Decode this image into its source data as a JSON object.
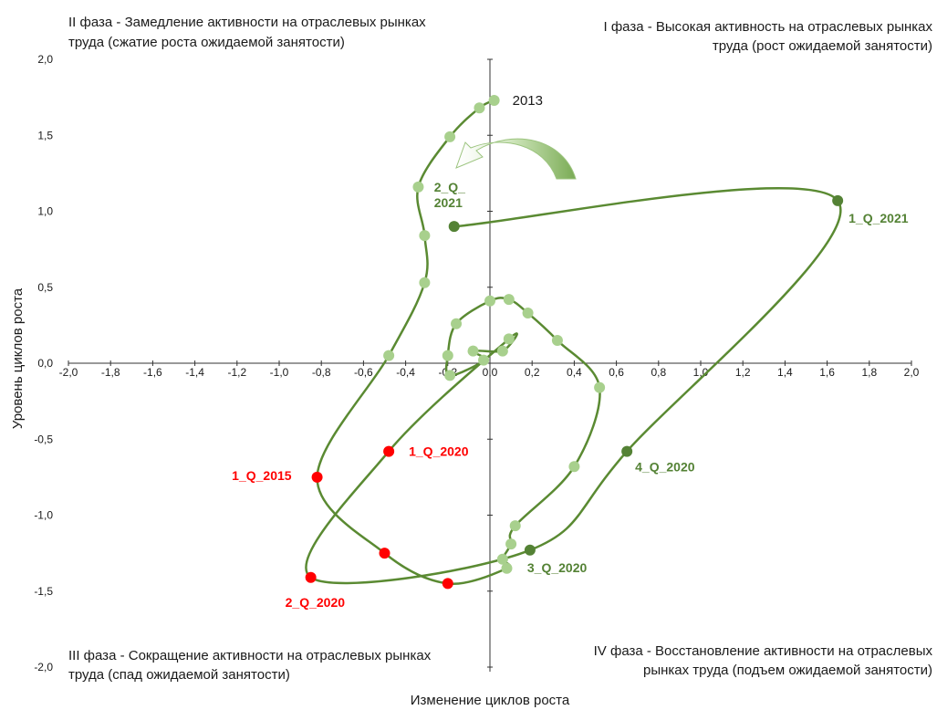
{
  "phases": {
    "q2_line1": "II  фаза - Замедление активности на отраслевых рынках",
    "q2_line2": "труда (сжатие роста ожидаемой занятости)",
    "q1_line1": "I фаза - Высокая активность на отраслевых  рынках",
    "q1_line2": "труда (рост ожидаемой занятости)",
    "q3_line1": "III фаза - Сокращение активности на отраслевых рынках",
    "q3_line2": "труда (спад ожидаемой занятости)",
    "q4_line1": "IV фаза - Восстановление активности на отраслевых",
    "q4_line2": "рынках труда (подъем ожидаемой занятости)"
  },
  "chart_data": {
    "type": "scatter",
    "xlabel": "Изменение циклов роста",
    "ylabel": "Уровень циклов роста",
    "xlim": [
      -2.0,
      2.0
    ],
    "ylim": [
      -2.0,
      2.0
    ],
    "x_ticks": [
      "-2,0",
      "-1,8",
      "-1,6",
      "-1,4",
      "-1,2",
      "-1,0",
      "-0,8",
      "-0,6",
      "-0,4",
      "-0,2",
      "0,0",
      "0,2",
      "0,4",
      "0,6",
      "0,8",
      "1,0",
      "1,2",
      "1,4",
      "1,6",
      "1,8",
      "2,0"
    ],
    "y_ticks": [
      "2,0",
      "1,5",
      "1,0",
      "0,5",
      "0,0",
      "-0,5",
      "-1,0",
      "-1,5",
      "-2,0"
    ],
    "grid": false,
    "colors": {
      "line": "#5a8a32",
      "light": "#a8d08d",
      "dark": "#548235",
      "red": "#ff0000",
      "dark_label": "#548235",
      "red_label": "#ff0000"
    },
    "path": [
      {
        "x": 0.02,
        "y": 1.73,
        "style": "light",
        "label": "2013",
        "label_style": "year"
      },
      {
        "x": -0.05,
        "y": 1.68,
        "style": "light"
      },
      {
        "x": -0.19,
        "y": 1.49,
        "style": "light"
      },
      {
        "x": -0.34,
        "y": 1.16,
        "style": "light"
      },
      {
        "x": -0.31,
        "y": 0.84,
        "style": "light"
      },
      {
        "x": -0.31,
        "y": 0.53,
        "style": "light"
      },
      {
        "x": -0.48,
        "y": 0.05,
        "style": "light"
      },
      {
        "x": -0.82,
        "y": -0.75,
        "style": "red",
        "label": "1_Q_2015",
        "label_style": "red"
      },
      {
        "x": -0.5,
        "y": -1.25,
        "style": "red"
      },
      {
        "x": -0.2,
        "y": -1.45,
        "style": "red"
      },
      {
        "x": 0.08,
        "y": -1.35,
        "style": "light"
      },
      {
        "x": 0.06,
        "y": -1.29,
        "style": "light"
      },
      {
        "x": 0.1,
        "y": -1.19,
        "style": "light"
      },
      {
        "x": 0.12,
        "y": -1.07,
        "style": "light"
      },
      {
        "x": 0.4,
        "y": -0.68,
        "style": "light"
      },
      {
        "x": 0.52,
        "y": -0.16,
        "style": "light"
      },
      {
        "x": 0.32,
        "y": 0.15,
        "style": "light"
      },
      {
        "x": 0.18,
        "y": 0.33,
        "style": "light"
      },
      {
        "x": 0.09,
        "y": 0.42,
        "style": "light"
      },
      {
        "x": 0.0,
        "y": 0.41,
        "style": "light"
      },
      {
        "x": -0.16,
        "y": 0.26,
        "style": "light"
      },
      {
        "x": -0.2,
        "y": 0.05,
        "style": "light"
      },
      {
        "x": -0.19,
        "y": -0.08,
        "style": "light"
      },
      {
        "x": -0.03,
        "y": 0.02,
        "style": "light"
      },
      {
        "x": -0.08,
        "y": 0.08,
        "style": "light"
      },
      {
        "x": 0.06,
        "y": 0.08,
        "style": "light"
      },
      {
        "x": 0.09,
        "y": 0.16,
        "style": "light"
      },
      {
        "x": -0.48,
        "y": -0.58,
        "style": "red",
        "label": "1_Q_2020",
        "label_style": "red"
      },
      {
        "x": -0.85,
        "y": -1.41,
        "style": "red",
        "label": "2_Q_2020",
        "label_style": "red"
      },
      {
        "x": 0.19,
        "y": -1.23,
        "style": "dark",
        "label": "3_Q_2020",
        "label_style": "dark"
      },
      {
        "x": 0.65,
        "y": -0.58,
        "style": "dark",
        "label": "4_Q_2020",
        "label_style": "dark"
      },
      {
        "x": 1.65,
        "y": 1.07,
        "style": "dark",
        "label": "1_Q_2021",
        "label_style": "dark"
      },
      {
        "x": -0.17,
        "y": 0.9,
        "style": "dark",
        "label": "2_Q_\n2021",
        "label_style": "dark"
      }
    ]
  }
}
